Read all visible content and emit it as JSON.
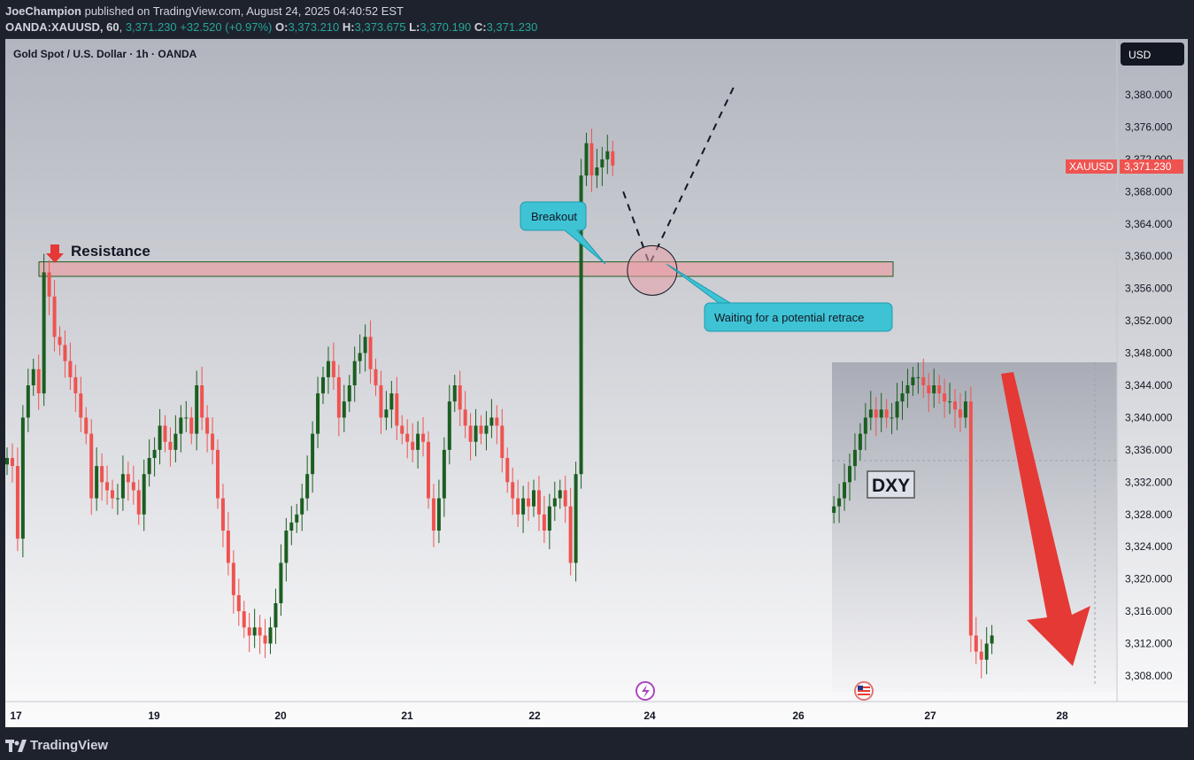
{
  "header": {
    "author": "JoeChampion",
    "published_text": "published on TradingView.com, August 24, 2025 04:40:52 EST",
    "symbol": "OANDA:XAUUSD, 60",
    "last": "3,371.230",
    "change": "+32.520 (+0.97%)",
    "o_label": "O:",
    "o_value": "3,373.210",
    "h_label": "H:",
    "h_value": "3,373.675",
    "l_label": "L:",
    "l_value": "3,370.190",
    "c_label": "C:",
    "c_value": "3,371.230"
  },
  "chart_title": "Gold Spot / U.S. Dollar · 1h · OANDA",
  "currency_button": "USD",
  "price_tag": {
    "symbol": "XAUUSD",
    "value": "3,371.230"
  },
  "annotations": {
    "resistance": "Resistance",
    "breakout": "Breakout",
    "retrace": "Waiting for a potential retrace",
    "dxy": "DXY"
  },
  "footer": {
    "brand": "TradingView"
  },
  "colors": {
    "up": "#1b5e20",
    "down": "#ef5350",
    "callout": "#3ec3d5",
    "arrow": "#e53935",
    "zone": "#e8a0a5"
  },
  "chart_data": {
    "type": "candlestick",
    "title": "Gold Spot / U.S. Dollar · 1h · OANDA",
    "x_ticks": [
      "17",
      "19",
      "20",
      "21",
      "22",
      "24",
      "26",
      "27",
      "28"
    ],
    "y_ticks": [
      "3,380.000",
      "3,376.000",
      "3,372.000",
      "3,368.000",
      "3,364.000",
      "3,360.000",
      "3,356.000",
      "3,352.000",
      "3,348.000",
      "3,344.000",
      "3,340.000",
      "3,336.000",
      "3,332.000",
      "3,328.000",
      "3,324.000",
      "3,320.000",
      "3,316.000",
      "3,312.000",
      "3,308.000"
    ],
    "ylim": [
      3305,
      3384
    ],
    "last_price": 3371.23,
    "resistance_zone": [
      3357.5,
      3359.3
    ],
    "path_close": [
      3335,
      3334,
      3325,
      3340,
      3344,
      3346,
      3343,
      3358,
      3355,
      3350,
      3349,
      3347,
      3345,
      3343,
      3340,
      3338,
      3330,
      3334,
      3332,
      3331,
      3330,
      3330,
      3333,
      3332,
      3331,
      3328,
      3333,
      3335,
      3336,
      3339,
      3337,
      3336,
      3338,
      3340,
      3340,
      3338,
      3344,
      3340,
      3338,
      3336,
      3330,
      3326,
      3322,
      3318,
      3316,
      3314,
      3313,
      3314,
      3313,
      3312,
      3314,
      3317,
      3322,
      3326,
      3327,
      3328,
      3330,
      3333,
      3338,
      3343,
      3345,
      3347,
      3345,
      3340,
      3342,
      3344,
      3347,
      3348,
      3350,
      3346,
      3344,
      3340,
      3341,
      3343,
      3339,
      3338,
      3337,
      3336,
      3338,
      3337,
      3330,
      3326,
      3330,
      3336,
      3342,
      3344,
      3341,
      3339,
      3337,
      3339,
      3338,
      3339,
      3340,
      3339,
      3335,
      3332,
      3330,
      3328,
      3330,
      3329,
      3331,
      3328,
      3326,
      3329,
      3330,
      3331,
      3329,
      3322,
      3333,
      3370,
      3374,
      3370,
      3371,
      3372,
      3373,
      3371.23
    ],
    "dxy_overlay": {
      "label": "DXY",
      "close": [
        3329,
        3330,
        3332,
        3334,
        3336,
        3338,
        3340,
        3341,
        3340,
        3341,
        3340,
        3340,
        3342,
        3343,
        3344,
        3345,
        3345,
        3344,
        3343,
        3344,
        3343,
        3342,
        3342,
        3341,
        3340,
        3342,
        3313,
        3311,
        3310,
        3312,
        3313
      ],
      "projection": "down"
    },
    "projection_path": [
      {
        "x_hour": 117,
        "price": 3368
      },
      {
        "x_hour": 122,
        "price": 3359
      },
      {
        "x_hour": 138,
        "price": 3381
      }
    ]
  }
}
